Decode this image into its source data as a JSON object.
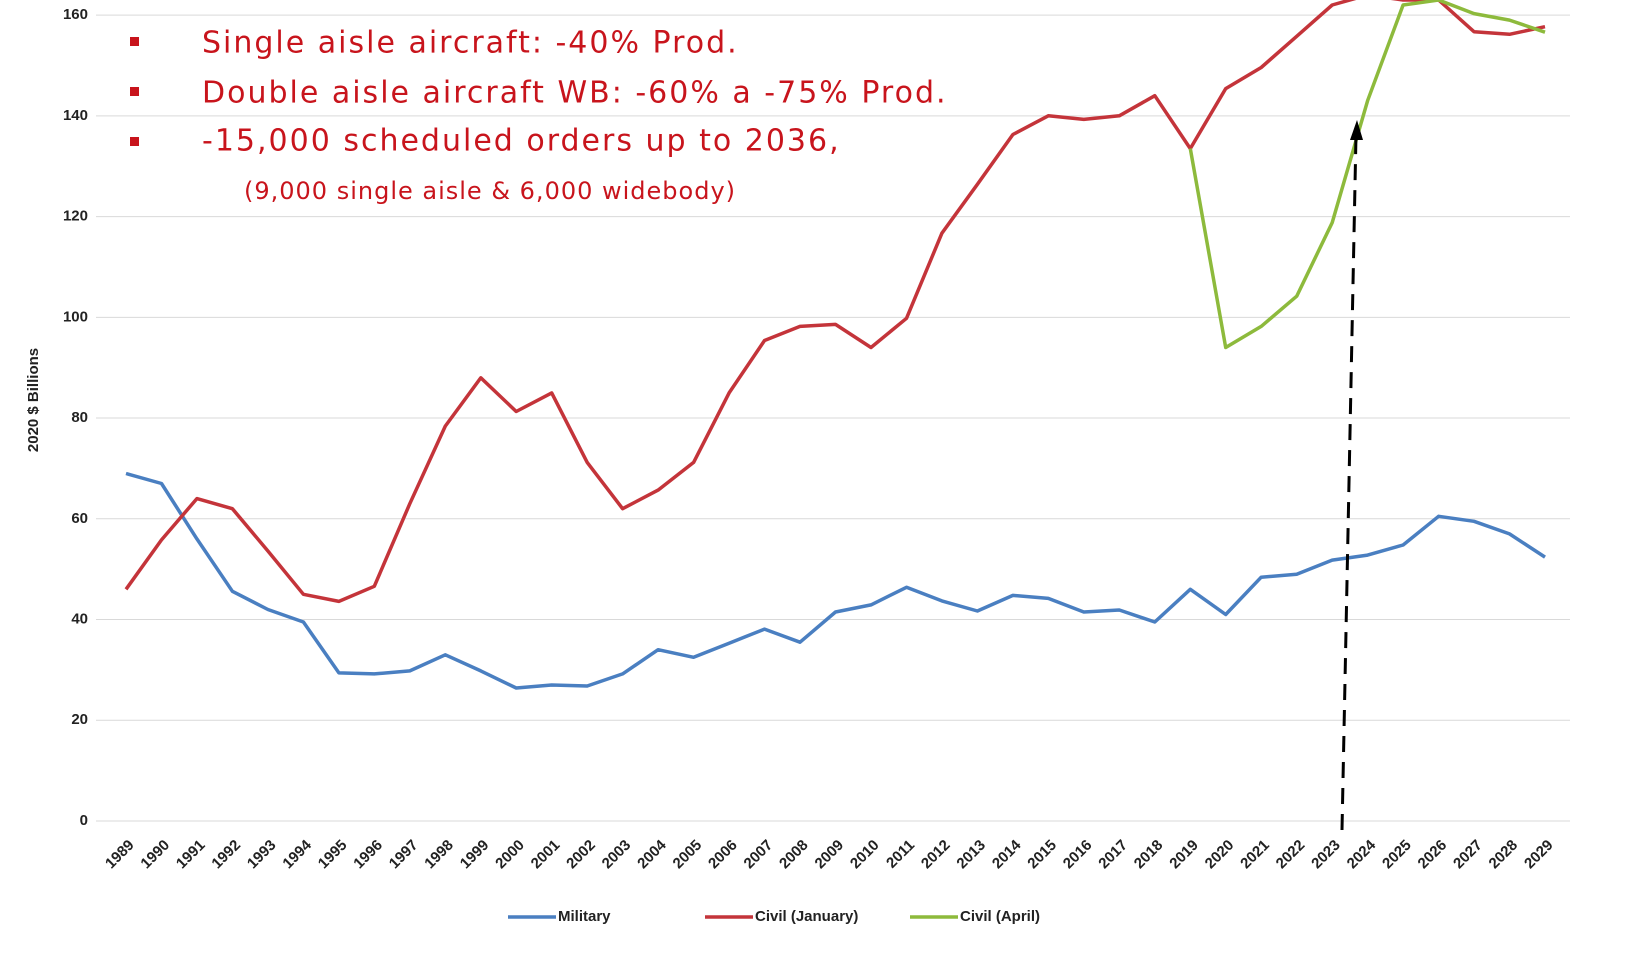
{
  "chart_data": {
    "type": "line",
    "y_label": "2020 $ Billions",
    "categories": [
      "1989",
      "1990",
      "1991",
      "1992",
      "1993",
      "1994",
      "1995",
      "1996",
      "1997",
      "1998",
      "1999",
      "2000",
      "2001",
      "2002",
      "2003",
      "2004",
      "2005",
      "2006",
      "2007",
      "2008",
      "2009",
      "2010",
      "2011",
      "2012",
      "2013",
      "2014",
      "2015",
      "2016",
      "2017",
      "2018",
      "2019",
      "2020",
      "2021",
      "2022",
      "2023",
      "2024",
      "2025",
      "2026",
      "2027",
      "2028",
      "2029"
    ],
    "series": [
      {
        "name": "Military",
        "color": "#4a7fc1",
        "values": [
          69,
          67,
          56,
          45.6,
          42,
          39.5,
          29.4,
          29.2,
          29.8,
          33,
          29.8,
          26.4,
          27,
          26.8,
          29.2,
          34,
          32.5,
          35.3,
          38.1,
          35.5,
          41.5,
          42.9,
          46.4,
          43.7,
          41.7,
          44.8,
          44.2,
          41.5,
          41.9,
          39.5,
          46,
          41,
          48.4,
          49,
          51.8,
          52.8,
          54.8,
          60.5,
          59.5,
          57,
          52.4
        ]
      },
      {
        "name": "Civil (January)",
        "color": "#c4343a",
        "values": [
          46,
          55.8,
          64,
          62,
          53.6,
          45,
          43.6,
          46.6,
          63,
          78.4,
          88,
          81.3,
          85,
          71.2,
          62,
          65.7,
          71.2,
          85,
          95.4,
          98.2,
          98.6,
          94,
          99.8,
          116.7,
          126.4,
          136.3,
          140,
          139.3,
          140,
          144,
          133.5,
          145.4,
          149.6,
          155.8,
          162,
          164,
          163,
          163,
          156.7,
          156.2,
          157.7
        ]
      },
      {
        "name": "Civil (April)",
        "color": "#8dba3c",
        "values": [
          null,
          null,
          null,
          null,
          null,
          null,
          null,
          null,
          null,
          null,
          null,
          null,
          null,
          null,
          null,
          null,
          null,
          null,
          null,
          null,
          null,
          null,
          null,
          null,
          null,
          null,
          null,
          null,
          null,
          null,
          133.5,
          94,
          98.2,
          104.2,
          118.8,
          143,
          162,
          163,
          160.3,
          159,
          156.6
        ]
      }
    ],
    "ylim": [
      0,
      163
    ],
    "yticks": [
      0,
      20,
      40,
      60,
      80,
      100,
      120,
      140,
      160
    ],
    "grid": true,
    "legend": "bottom",
    "annotations": [
      "Single aisle aircraft: -40% Prod.",
      "Double aisle aircraft WB: -60% a -75% Prod.",
      "-15,000 scheduled orders up to 2036,",
      "(9,000 single aisle & 6,000 widebody)"
    ]
  }
}
